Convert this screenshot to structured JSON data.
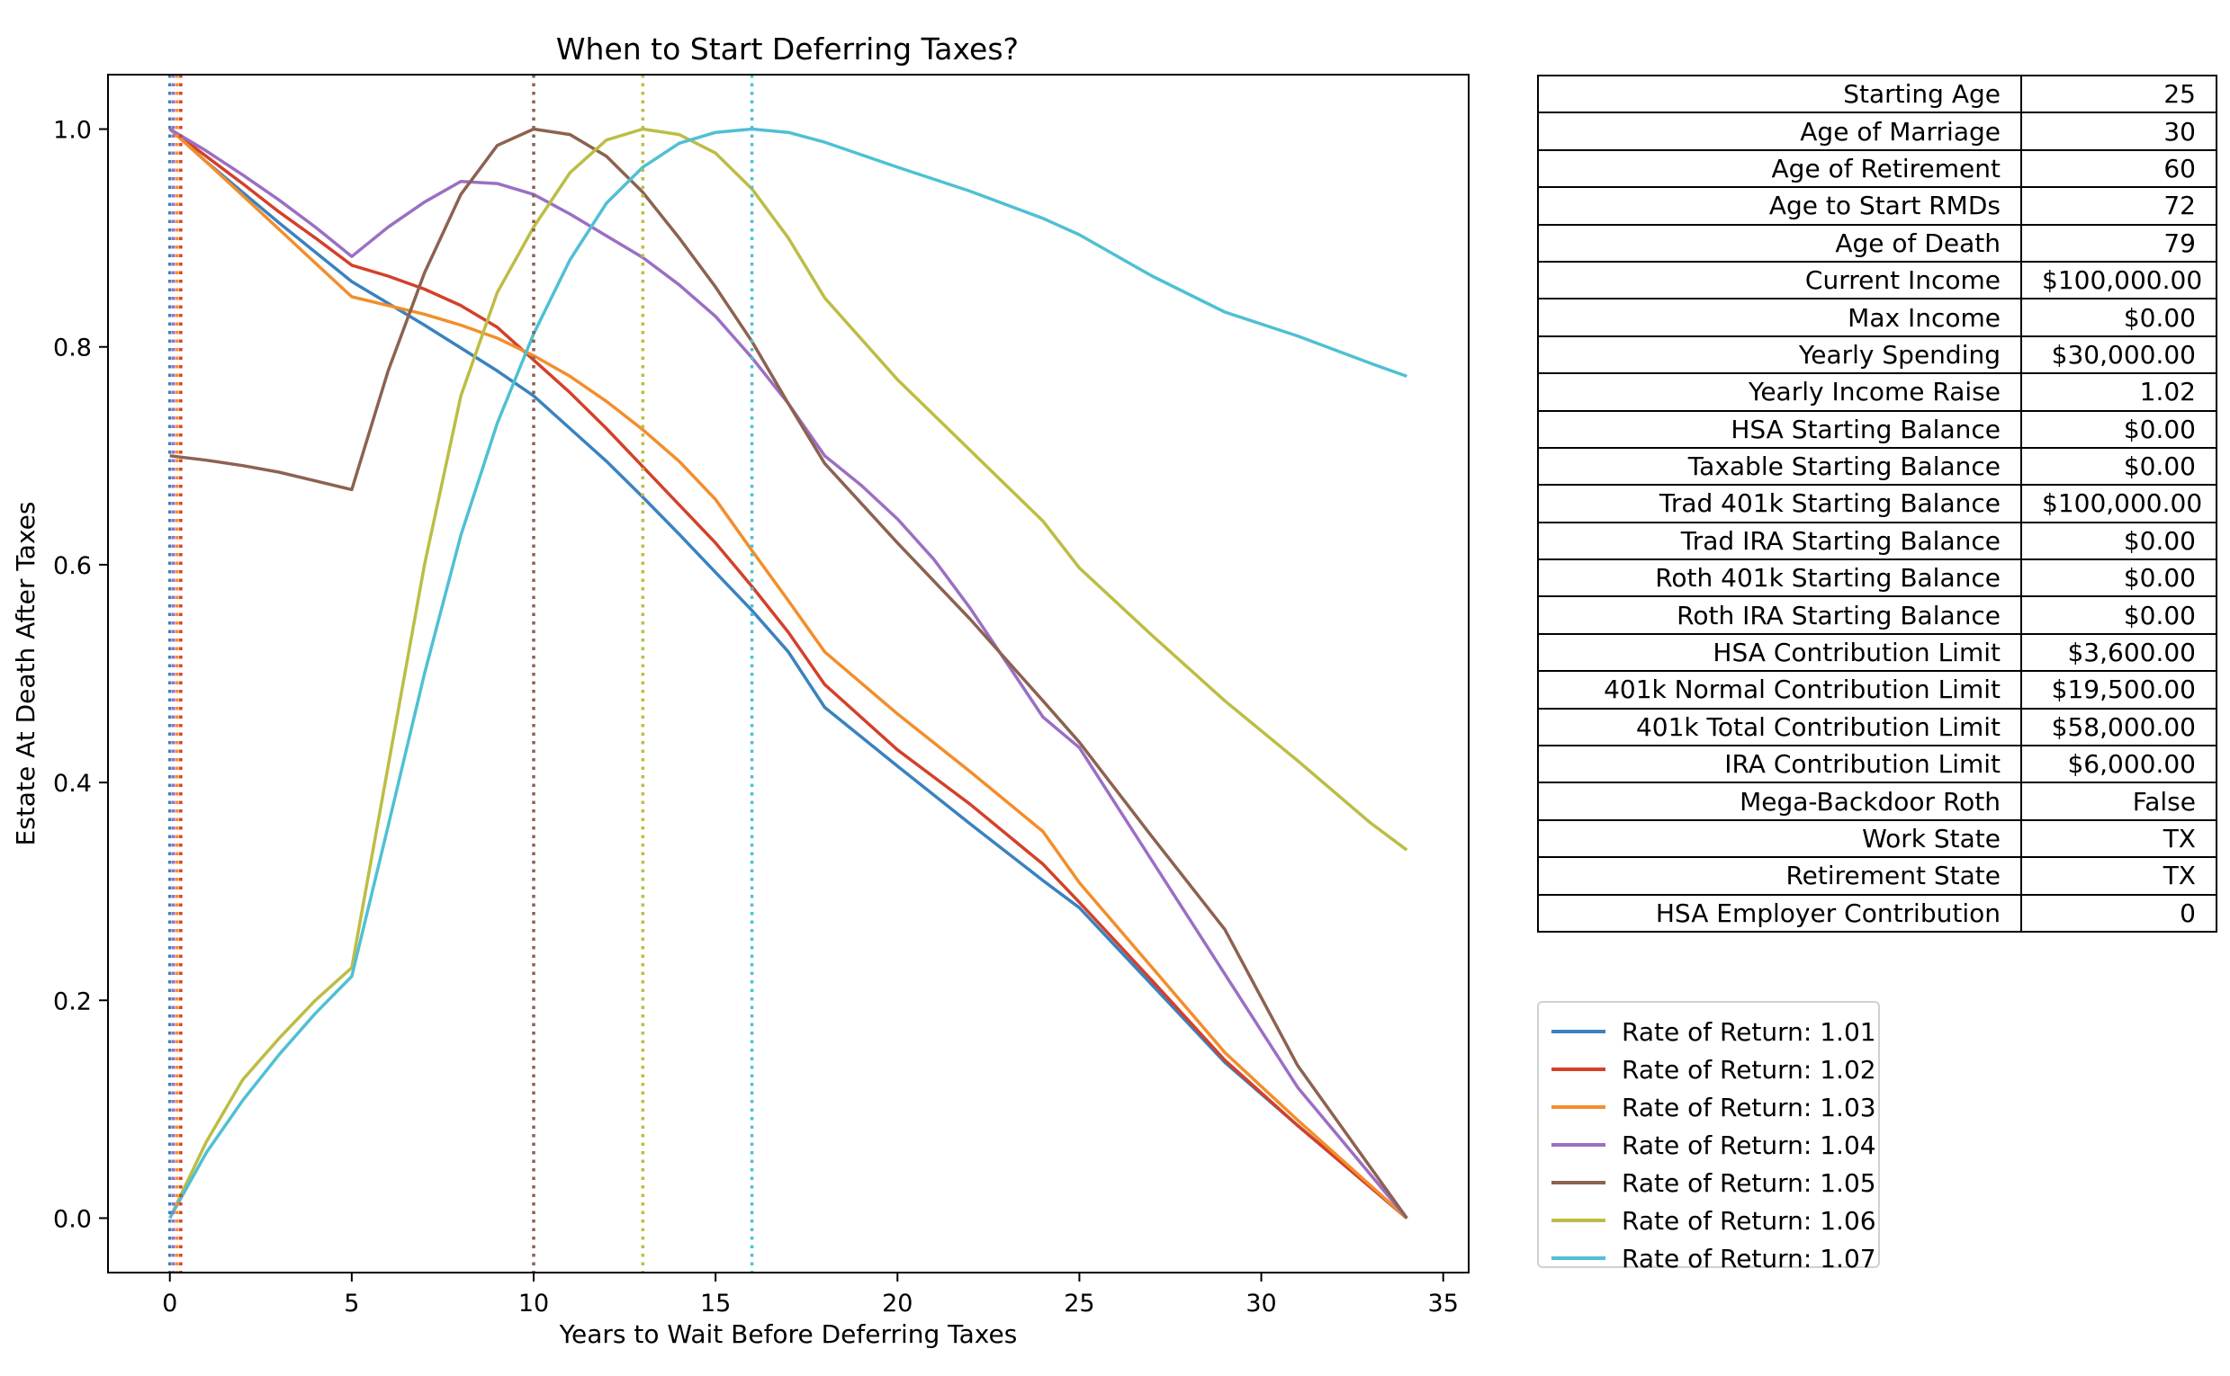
{
  "chart_data": {
    "type": "line",
    "title": "When to Start Deferring Taxes?",
    "xlabel": "Years to Wait Before Deferring Taxes",
    "ylabel": "Estate At Death After Taxes",
    "xlim": [
      -1.7,
      35.7
    ],
    "ylim": [
      -0.05,
      1.05
    ],
    "x_ticks": [
      0,
      5,
      10,
      15,
      20,
      25,
      30,
      35
    ],
    "y_ticks": [
      0.0,
      0.2,
      0.4,
      0.6,
      0.8,
      1.0
    ],
    "grid": false,
    "legend_position": "below table, right of plot",
    "series": [
      {
        "name": "Rate of Return: 1.01",
        "color": "#3a82bf",
        "optimum_x": 0,
        "points": [
          [
            0,
            1.0
          ],
          [
            1,
            0.97
          ],
          [
            2,
            0.942
          ],
          [
            3,
            0.914
          ],
          [
            4,
            0.887
          ],
          [
            5,
            0.86
          ],
          [
            6,
            0.84
          ],
          [
            7,
            0.82
          ],
          [
            8,
            0.799
          ],
          [
            9,
            0.778
          ],
          [
            10,
            0.755
          ],
          [
            11,
            0.725
          ],
          [
            12,
            0.695
          ],
          [
            13,
            0.662
          ],
          [
            14,
            0.628
          ],
          [
            15,
            0.593
          ],
          [
            16,
            0.558
          ],
          [
            17,
            0.52
          ],
          [
            18,
            0.469
          ],
          [
            20,
            0.415
          ],
          [
            22,
            0.362
          ],
          [
            24,
            0.31
          ],
          [
            25,
            0.285
          ],
          [
            27,
            0.214
          ],
          [
            29,
            0.143
          ],
          [
            31,
            0.085
          ],
          [
            34,
            0.0
          ]
        ]
      },
      {
        "name": "Rate of Return: 1.02",
        "color": "#d4402a",
        "optimum_x": 0.3,
        "points": [
          [
            0,
            1.0
          ],
          [
            1,
            0.975
          ],
          [
            2,
            0.95
          ],
          [
            3,
            0.924
          ],
          [
            4,
            0.9
          ],
          [
            5,
            0.875
          ],
          [
            6,
            0.865
          ],
          [
            7,
            0.853
          ],
          [
            8,
            0.838
          ],
          [
            9,
            0.818
          ],
          [
            10,
            0.788
          ],
          [
            11,
            0.758
          ],
          [
            12,
            0.725
          ],
          [
            13,
            0.69
          ],
          [
            14,
            0.655
          ],
          [
            15,
            0.62
          ],
          [
            16,
            0.58
          ],
          [
            17,
            0.538
          ],
          [
            18,
            0.49
          ],
          [
            20,
            0.43
          ],
          [
            22,
            0.38
          ],
          [
            24,
            0.325
          ],
          [
            25,
            0.29
          ],
          [
            27,
            0.218
          ],
          [
            29,
            0.145
          ],
          [
            31,
            0.085
          ],
          [
            34,
            0.0
          ]
        ]
      },
      {
        "name": "Rate of Return: 1.03",
        "color": "#f28e2b",
        "optimum_x": 0.2,
        "points": [
          [
            0,
            1.0
          ],
          [
            1,
            0.97
          ],
          [
            2,
            0.939
          ],
          [
            3,
            0.908
          ],
          [
            4,
            0.877
          ],
          [
            5,
            0.846
          ],
          [
            6,
            0.838
          ],
          [
            7,
            0.83
          ],
          [
            8,
            0.82
          ],
          [
            9,
            0.808
          ],
          [
            10,
            0.792
          ],
          [
            11,
            0.773
          ],
          [
            12,
            0.75
          ],
          [
            13,
            0.724
          ],
          [
            14,
            0.695
          ],
          [
            15,
            0.66
          ],
          [
            16,
            0.613
          ],
          [
            17,
            0.567
          ],
          [
            18,
            0.52
          ],
          [
            20,
            0.463
          ],
          [
            22,
            0.41
          ],
          [
            24,
            0.355
          ],
          [
            25,
            0.308
          ],
          [
            27,
            0.23
          ],
          [
            29,
            0.152
          ],
          [
            31,
            0.09
          ],
          [
            34,
            0.0
          ]
        ]
      },
      {
        "name": "Rate of Return: 1.04",
        "color": "#9b6fc4",
        "optimum_x": 0.1,
        "points": [
          [
            0,
            1.0
          ],
          [
            1,
            0.98
          ],
          [
            2,
            0.958
          ],
          [
            3,
            0.935
          ],
          [
            4,
            0.91
          ],
          [
            5,
            0.883
          ],
          [
            6,
            0.91
          ],
          [
            7,
            0.933
          ],
          [
            8,
            0.952
          ],
          [
            9,
            0.95
          ],
          [
            10,
            0.94
          ],
          [
            11,
            0.922
          ],
          [
            12,
            0.902
          ],
          [
            13,
            0.882
          ],
          [
            14,
            0.857
          ],
          [
            15,
            0.828
          ],
          [
            16,
            0.79
          ],
          [
            17,
            0.748
          ],
          [
            18,
            0.7
          ],
          [
            19,
            0.673
          ],
          [
            20,
            0.642
          ],
          [
            21,
            0.605
          ],
          [
            22,
            0.56
          ],
          [
            23,
            0.51
          ],
          [
            24,
            0.46
          ],
          [
            25,
            0.432
          ],
          [
            27,
            0.328
          ],
          [
            29,
            0.224
          ],
          [
            31,
            0.12
          ],
          [
            34,
            0.0
          ]
        ]
      },
      {
        "name": "Rate of Return: 1.05",
        "color": "#8c6250",
        "optimum_x": 10,
        "points": [
          [
            0,
            0.7
          ],
          [
            1,
            0.696
          ],
          [
            2,
            0.691
          ],
          [
            3,
            0.685
          ],
          [
            4,
            0.677
          ],
          [
            5,
            0.669
          ],
          [
            6,
            0.778
          ],
          [
            7,
            0.868
          ],
          [
            8,
            0.94
          ],
          [
            9,
            0.985
          ],
          [
            10,
            1.0
          ],
          [
            11,
            0.995
          ],
          [
            12,
            0.975
          ],
          [
            13,
            0.942
          ],
          [
            14,
            0.9
          ],
          [
            15,
            0.855
          ],
          [
            16,
            0.805
          ],
          [
            17,
            0.748
          ],
          [
            18,
            0.693
          ],
          [
            20,
            0.62
          ],
          [
            22,
            0.55
          ],
          [
            24,
            0.475
          ],
          [
            25,
            0.437
          ],
          [
            27,
            0.35
          ],
          [
            29,
            0.265
          ],
          [
            31,
            0.14
          ],
          [
            34,
            0.0
          ]
        ]
      },
      {
        "name": "Rate of Return: 1.06",
        "color": "#bcbd45",
        "optimum_x": 13,
        "points": [
          [
            0,
            0.0
          ],
          [
            1,
            0.07
          ],
          [
            2,
            0.127
          ],
          [
            3,
            0.165
          ],
          [
            4,
            0.2
          ],
          [
            5,
            0.23
          ],
          [
            6,
            0.415
          ],
          [
            7,
            0.6
          ],
          [
            8,
            0.755
          ],
          [
            9,
            0.85
          ],
          [
            10,
            0.91
          ],
          [
            11,
            0.96
          ],
          [
            12,
            0.99
          ],
          [
            13,
            1.0
          ],
          [
            14,
            0.995
          ],
          [
            15,
            0.978
          ],
          [
            16,
            0.945
          ],
          [
            17,
            0.9
          ],
          [
            18,
            0.845
          ],
          [
            20,
            0.77
          ],
          [
            22,
            0.705
          ],
          [
            24,
            0.64
          ],
          [
            25,
            0.597
          ],
          [
            27,
            0.535
          ],
          [
            29,
            0.475
          ],
          [
            31,
            0.42
          ],
          [
            33,
            0.363
          ],
          [
            34,
            0.338
          ]
        ]
      },
      {
        "name": "Rate of Return: 1.07",
        "color": "#4fc0d3",
        "optimum_x": 16,
        "points": [
          [
            0,
            0.0
          ],
          [
            1,
            0.06
          ],
          [
            2,
            0.108
          ],
          [
            3,
            0.15
          ],
          [
            4,
            0.188
          ],
          [
            5,
            0.222
          ],
          [
            6,
            0.36
          ],
          [
            7,
            0.5
          ],
          [
            8,
            0.627
          ],
          [
            9,
            0.73
          ],
          [
            10,
            0.812
          ],
          [
            11,
            0.88
          ],
          [
            12,
            0.932
          ],
          [
            13,
            0.965
          ],
          [
            14,
            0.987
          ],
          [
            15,
            0.997
          ],
          [
            16,
            1.0
          ],
          [
            17,
            0.997
          ],
          [
            18,
            0.988
          ],
          [
            20,
            0.965
          ],
          [
            22,
            0.943
          ],
          [
            24,
            0.918
          ],
          [
            25,
            0.903
          ],
          [
            27,
            0.865
          ],
          [
            29,
            0.832
          ],
          [
            31,
            0.81
          ],
          [
            33,
            0.785
          ],
          [
            34,
            0.773
          ]
        ]
      }
    ]
  },
  "params_table": [
    {
      "label": "Starting Age",
      "value": "25"
    },
    {
      "label": "Age of Marriage",
      "value": "30"
    },
    {
      "label": "Age of Retirement",
      "value": "60"
    },
    {
      "label": "Age to Start RMDs",
      "value": "72"
    },
    {
      "label": "Age of Death",
      "value": "79"
    },
    {
      "label": "Current Income",
      "value": "$100,000.00"
    },
    {
      "label": "Max Income",
      "value": "$0.00"
    },
    {
      "label": "Yearly Spending",
      "value": "$30,000.00"
    },
    {
      "label": "Yearly Income Raise",
      "value": "1.02"
    },
    {
      "label": "HSA Starting Balance",
      "value": "$0.00"
    },
    {
      "label": "Taxable Starting Balance",
      "value": "$0.00"
    },
    {
      "label": "Trad 401k Starting Balance",
      "value": "$100,000.00"
    },
    {
      "label": "Trad IRA Starting Balance",
      "value": "$0.00"
    },
    {
      "label": "Roth 401k Starting Balance",
      "value": "$0.00"
    },
    {
      "label": "Roth IRA Starting Balance",
      "value": "$0.00"
    },
    {
      "label": "HSA Contribution Limit",
      "value": "$3,600.00"
    },
    {
      "label": "401k Normal Contribution Limit",
      "value": "$19,500.00"
    },
    {
      "label": "401k Total Contribution Limit",
      "value": "$58,000.00"
    },
    {
      "label": "IRA Contribution Limit",
      "value": "$6,000.00"
    },
    {
      "label": "Mega-Backdoor Roth",
      "value": "False"
    },
    {
      "label": "Work State",
      "value": "TX"
    },
    {
      "label": "Retirement State",
      "value": "TX"
    },
    {
      "label": "HSA Employer Contribution",
      "value": "0"
    }
  ]
}
